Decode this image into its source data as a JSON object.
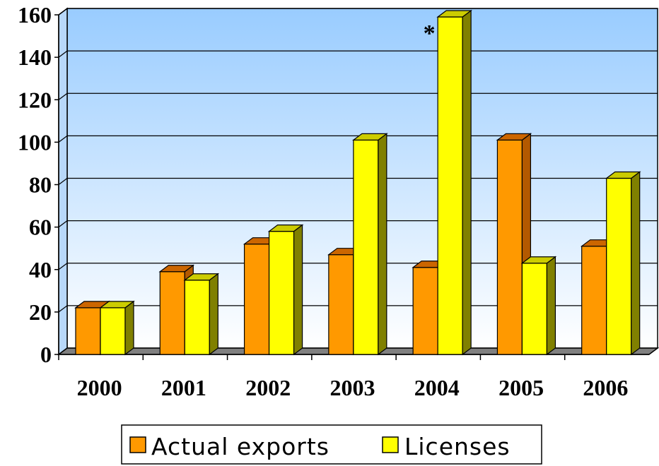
{
  "chart_data": {
    "type": "bar",
    "categories": [
      "2000",
      "2001",
      "2002",
      "2003",
      "2004",
      "2005",
      "2006"
    ],
    "series": [
      {
        "name": "Actual exports",
        "values": [
          22,
          39,
          52,
          47,
          41,
          101,
          51
        ],
        "color": "#FF9900"
      },
      {
        "name": "Licenses",
        "values": [
          22,
          35,
          58,
          101,
          159,
          43,
          83
        ],
        "color": "#FFFF00"
      }
    ],
    "ylim": [
      0,
      160
    ],
    "yticks": [
      "0",
      "20",
      "40",
      "60",
      "80",
      "100",
      "120",
      "140",
      "160"
    ],
    "grid": true,
    "legend": "bottom",
    "annotations": [
      {
        "text": "*",
        "category": "2004",
        "series": "Licenses"
      }
    ],
    "title": "",
    "xlabel": "",
    "ylabel": ""
  }
}
